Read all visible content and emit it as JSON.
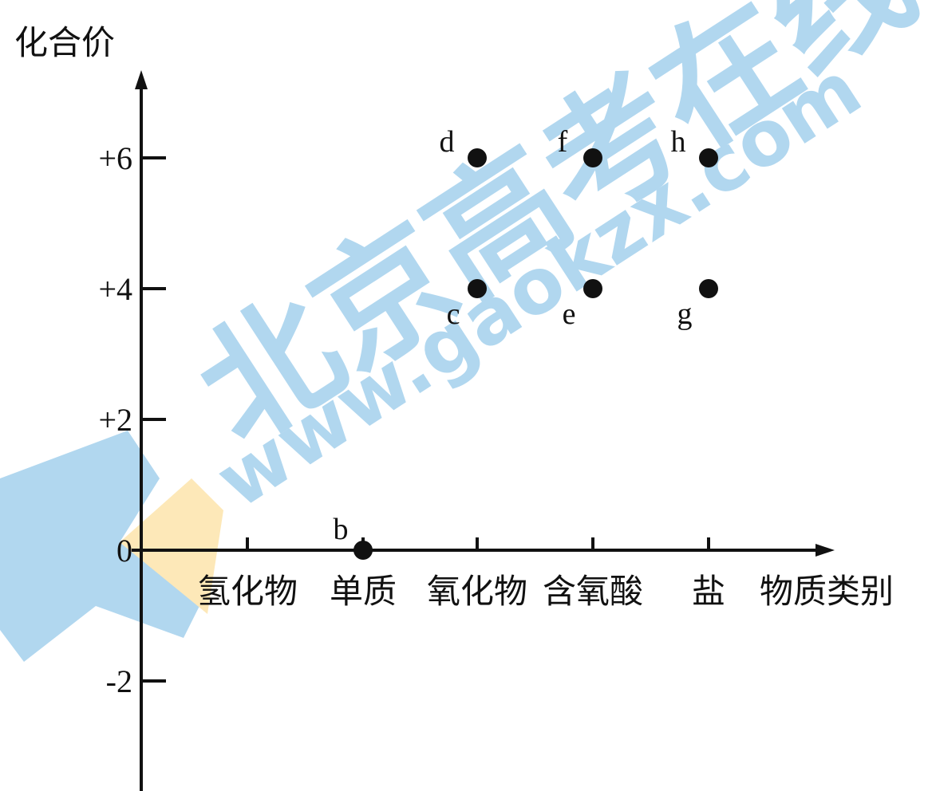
{
  "chart_data": {
    "type": "scatter",
    "title": "",
    "ylabel": "化合价",
    "xlabel": "物质类别",
    "categories": [
      "氢化物",
      "单质",
      "氧化物",
      "含氧酸",
      "盐"
    ],
    "y_ticks": [
      "+6",
      "+4",
      "+2",
      "0",
      "-2"
    ],
    "ylim": [
      -4,
      7
    ],
    "grid": false,
    "series": [
      {
        "points": [
          {
            "label": "b",
            "category": "单质",
            "y": 0
          },
          {
            "label": "c",
            "category": "氧化物",
            "y": 4
          },
          {
            "label": "d",
            "category": "氧化物",
            "y": 6
          },
          {
            "label": "e",
            "category": "含氧酸",
            "y": 4
          },
          {
            "label": "f",
            "category": "含氧酸",
            "y": 6
          },
          {
            "label": "g",
            "category": "盐",
            "y": 4
          },
          {
            "label": "h",
            "category": "盐",
            "y": 6
          }
        ]
      }
    ]
  },
  "watermark": {
    "text_cn": "北京高考在线",
    "text_url": "www.gaokzx.com",
    "color_blue": "#a9d3ee",
    "color_orange": "#fde6b0"
  }
}
